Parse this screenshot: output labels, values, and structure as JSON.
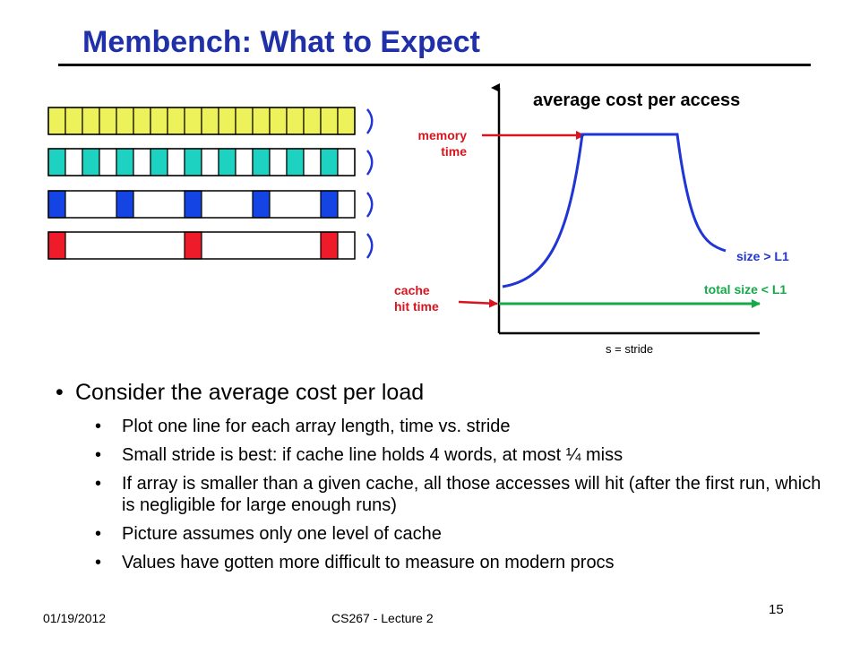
{
  "slide": {
    "title": "Membench: What to Expect",
    "page_number": "15",
    "footer_date": "01/19/2012",
    "footer_course": "CS267 - Lecture 2"
  },
  "diagram": {
    "title": "average cost per access",
    "memory_time_line1": "memory",
    "memory_time_line2": "time",
    "cache_hit_line1": "cache",
    "cache_hit_line2": "hit time",
    "size_gt_l1": "size > L1",
    "total_size_lt_l1": "total size < L1",
    "x_axis_label": "s = stride"
  },
  "arrays": [
    {
      "stride": 1,
      "color": "#eef25a"
    },
    {
      "stride": 2,
      "color": "#1ed2c2"
    },
    {
      "stride": 4,
      "color": "#1445e4"
    },
    {
      "stride": 8,
      "color": "#ee1c2a"
    }
  ],
  "bullets": {
    "main": "Consider the average cost per load",
    "items": [
      "Plot one line for each array length, time vs. stride",
      "Small stride is best: if cache line holds 4 words, at most ¼ miss",
      "If array is smaller than a given cache, all those accesses will hit (after the first run, which is negligible for large enough runs)",
      "Picture assumes only one level of cache",
      "Values have gotten more difficult to measure on modern procs"
    ]
  }
}
